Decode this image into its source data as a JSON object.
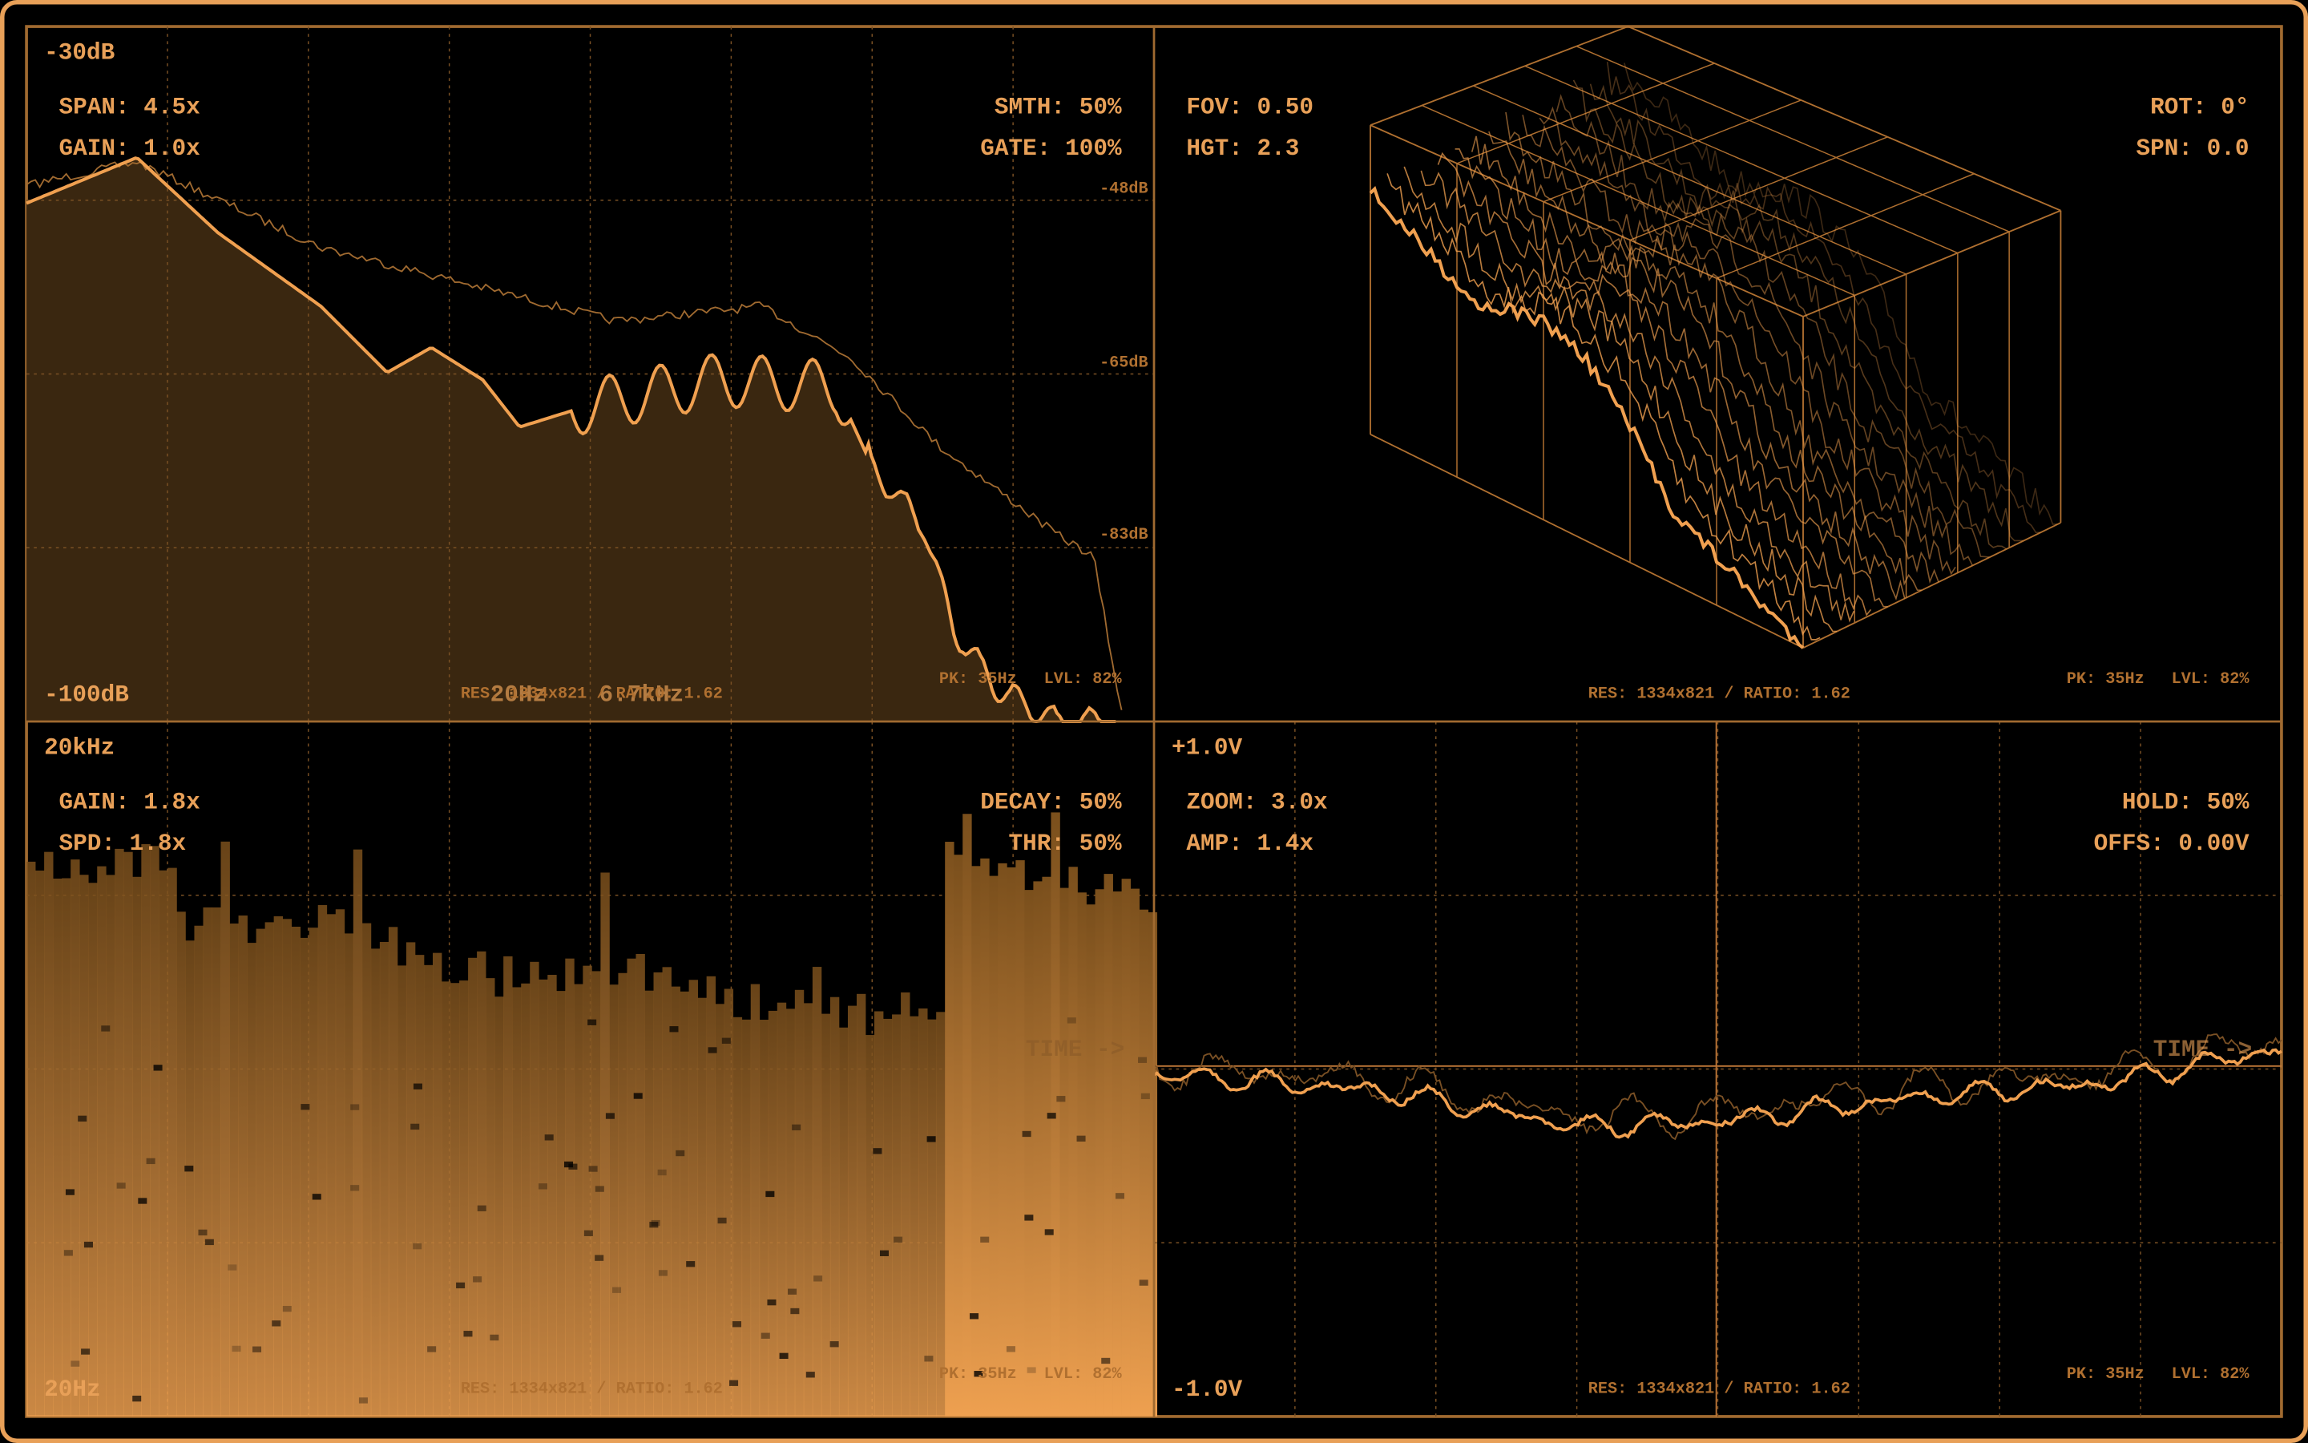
{
  "panels": [
    {
      "corner_top": "-30dB",
      "corner_bottom": "-100dB",
      "params_left": [
        "SPAN: 4.5x",
        "GAIN: 1.0x"
      ],
      "params_right": [
        "SMTH: 50%",
        "GATE: 100%"
      ],
      "scale_labels": [
        "-48dB",
        "-65dB",
        "-83dB"
      ],
      "axis_labels": [
        "20Hz",
        "6.7kHz"
      ],
      "status": "RES: 1334x821 / RATIO: 1.62",
      "peak": "PK: 35Hz",
      "level": "LVL: 82%"
    },
    {
      "params_left": [
        "FOV: 0.50",
        "HGT: 2.3"
      ],
      "params_right": [
        "ROT: 0°",
        "SPN: 0.0"
      ],
      "status": "RES: 1334x821 / RATIO: 1.62",
      "peak": "PK: 35Hz",
      "level": "LVL: 82%"
    },
    {
      "corner_top": "20kHz",
      "corner_bottom": "20Hz",
      "params_left": [
        "GAIN: 1.8x",
        "SPD: 1.8x"
      ],
      "params_right": [
        "DECAY: 50%",
        "THR: 50%"
      ],
      "overlay": "TIME ->",
      "status": "RES: 1334x821 / RATIO: 1.62",
      "peak": "PK: 35Hz",
      "level": "LVL: 82%"
    },
    {
      "corner_top": "+1.0V",
      "corner_bottom": "-1.0V",
      "params_left": [
        "ZOOM: 3.0x",
        "AMP: 1.4x"
      ],
      "params_right": [
        "HOLD: 50%",
        "OFFS: 0.00V"
      ],
      "overlay": "TIME ->",
      "status": "RES: 1334x821 / RATIO: 1.62",
      "peak": "PK: 35Hz",
      "level": "LVL: 82%"
    }
  ]
}
